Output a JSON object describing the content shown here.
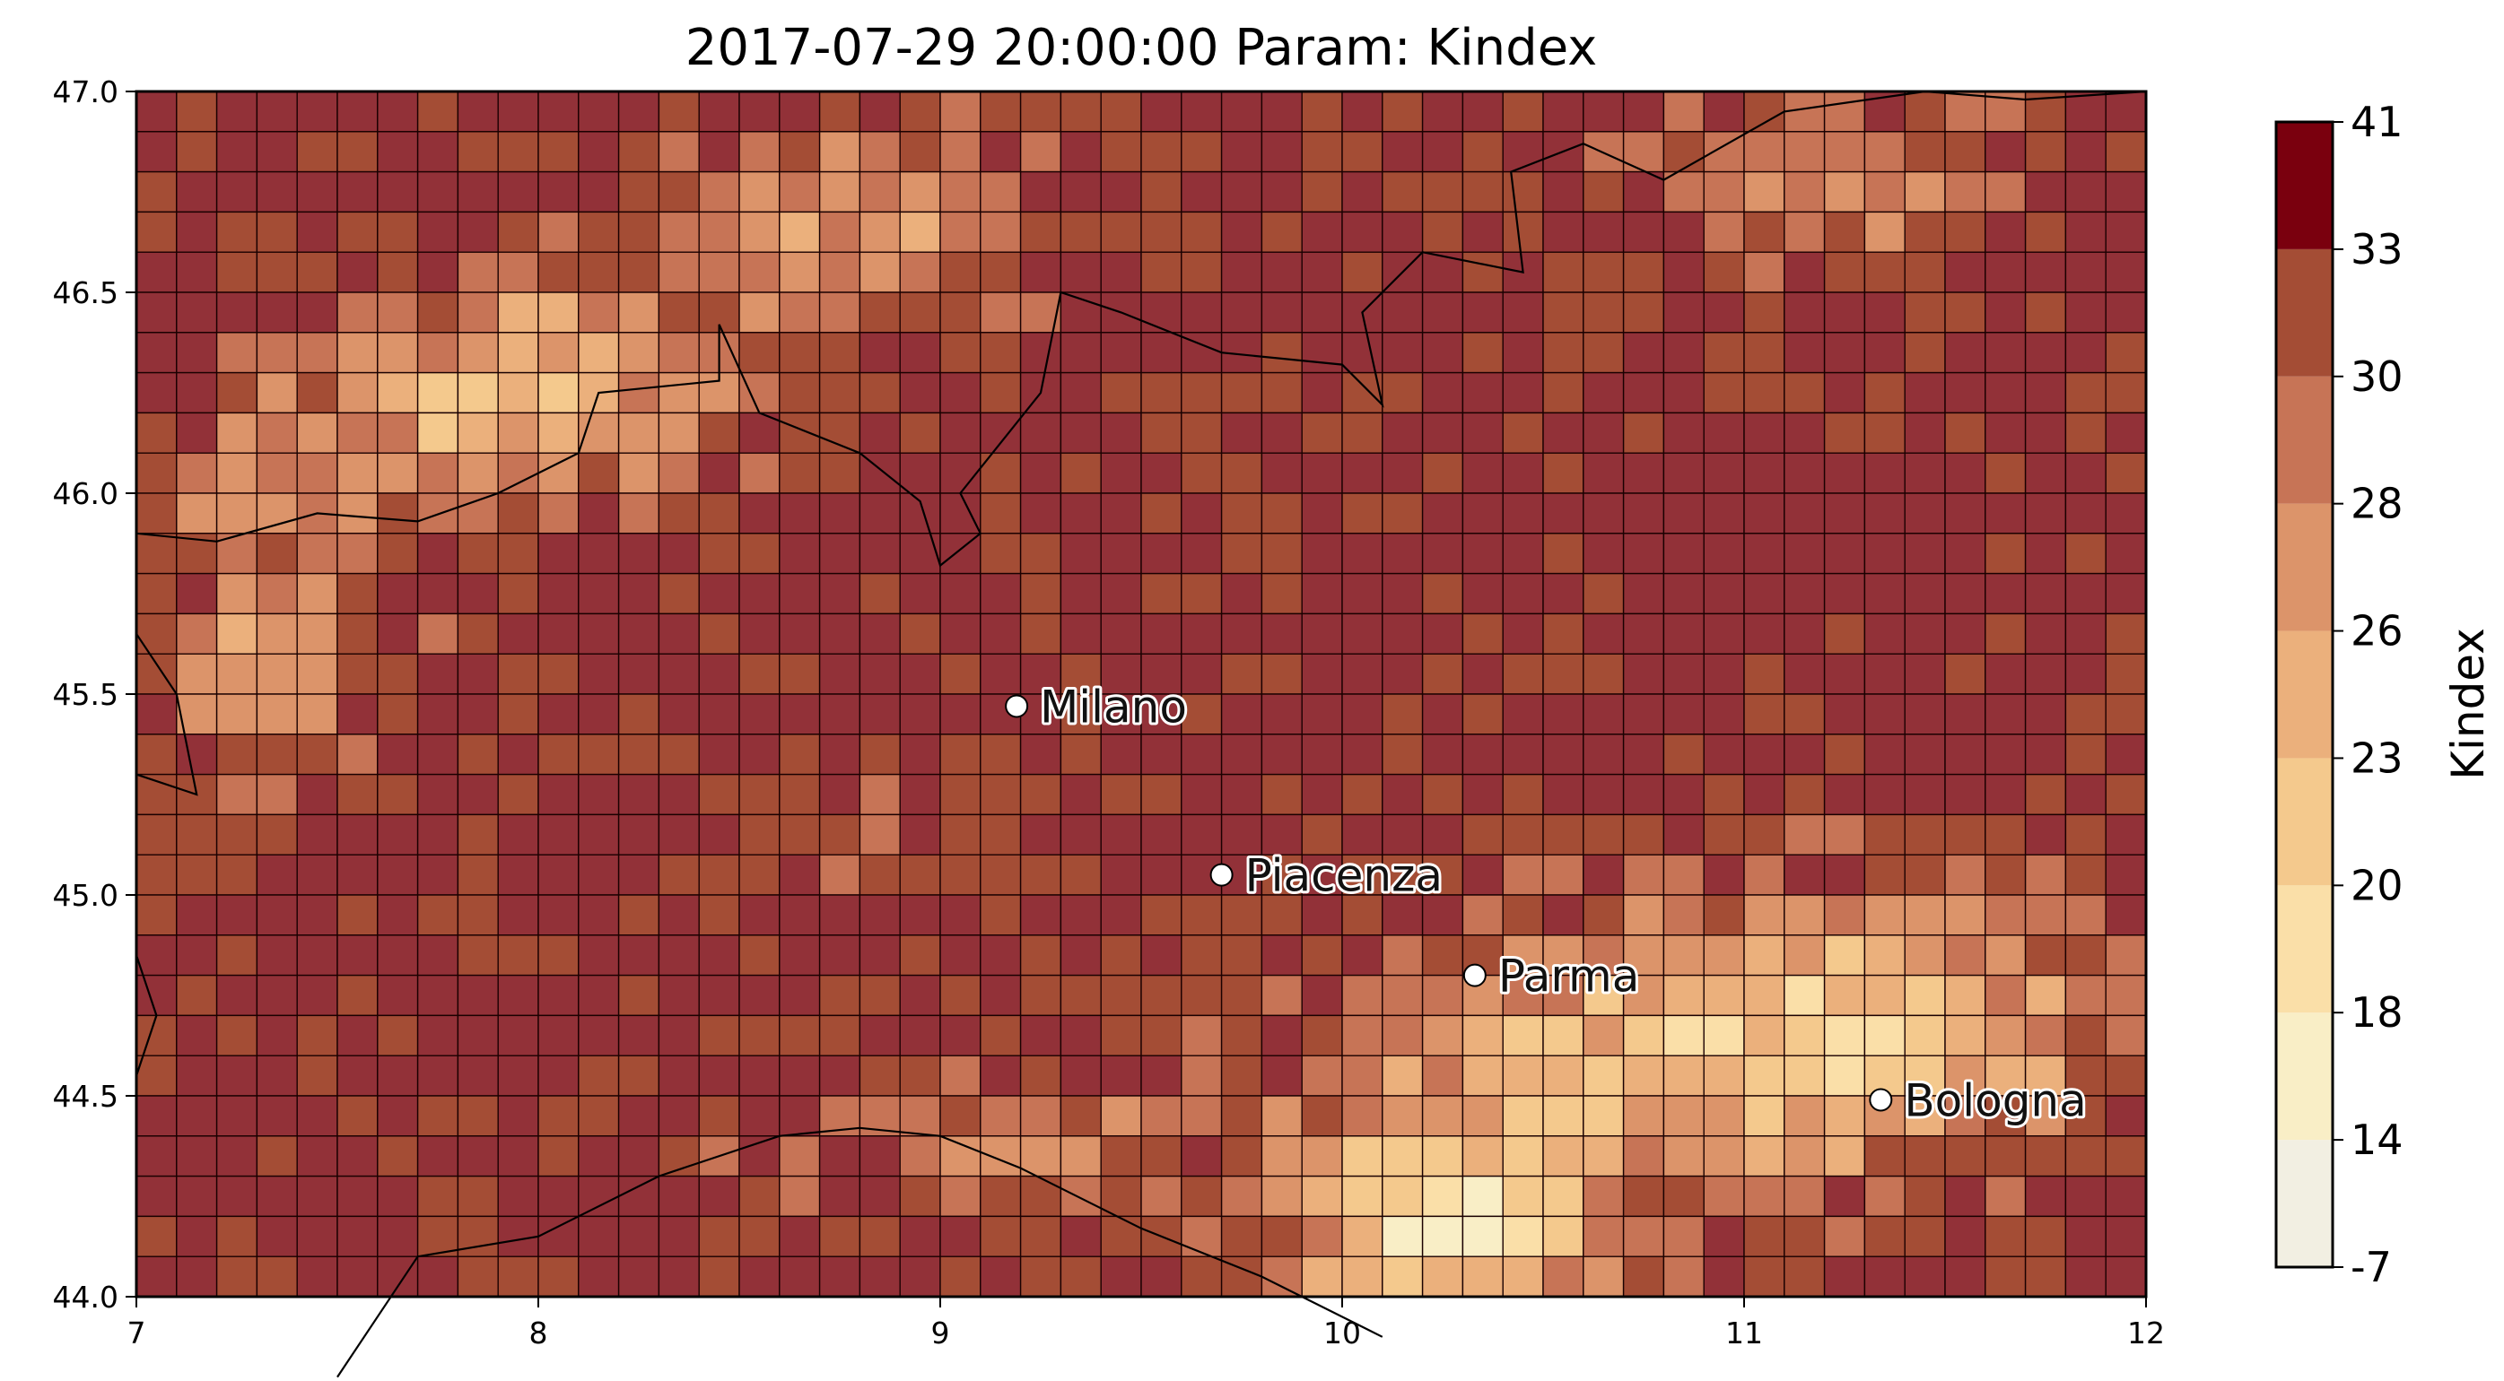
{
  "chart_data": {
    "type": "heatmap",
    "title": "2017-07-29 20:00:00 Param: Kindex",
    "colorbar_label": "Kindex",
    "xlim": [
      7,
      12
    ],
    "ylim": [
      44,
      47
    ],
    "x_ticks": [
      "7",
      "8",
      "9",
      "10",
      "11",
      "12"
    ],
    "y_ticks": [
      "44.0",
      "44.5",
      "45.0",
      "45.5",
      "46.0",
      "46.5",
      "47.0"
    ],
    "colorbar_ticks": [
      "-7",
      "14",
      "18",
      "20",
      "23",
      "26",
      "28",
      "30",
      "33",
      "41"
    ],
    "colorbar_levels": [
      -7,
      14,
      18,
      20,
      23,
      26,
      28,
      30,
      33,
      41
    ],
    "colorbar_colors": [
      "#f2efe2",
      "#f9eec6",
      "#fadfa8",
      "#f4c98d",
      "#ebb07c",
      "#dc946a",
      "#c77456",
      "#a44d35",
      "#7a000e"
    ],
    "grid": {
      "cols": 50,
      "rows": 30,
      "cell_deg": 0.1
    },
    "cities": [
      {
        "name": "Milano",
        "lon": 9.19,
        "lat": 45.47
      },
      {
        "name": "Piacenza",
        "lon": 9.7,
        "lat": 45.05
      },
      {
        "name": "Parma",
        "lon": 10.33,
        "lat": 44.8
      },
      {
        "name": "Bologna",
        "lon": 11.34,
        "lat": 44.49
      }
    ],
    "field_note_values_sample": "class indices per cell, computed procedurally in script to mimic observed pattern"
  }
}
